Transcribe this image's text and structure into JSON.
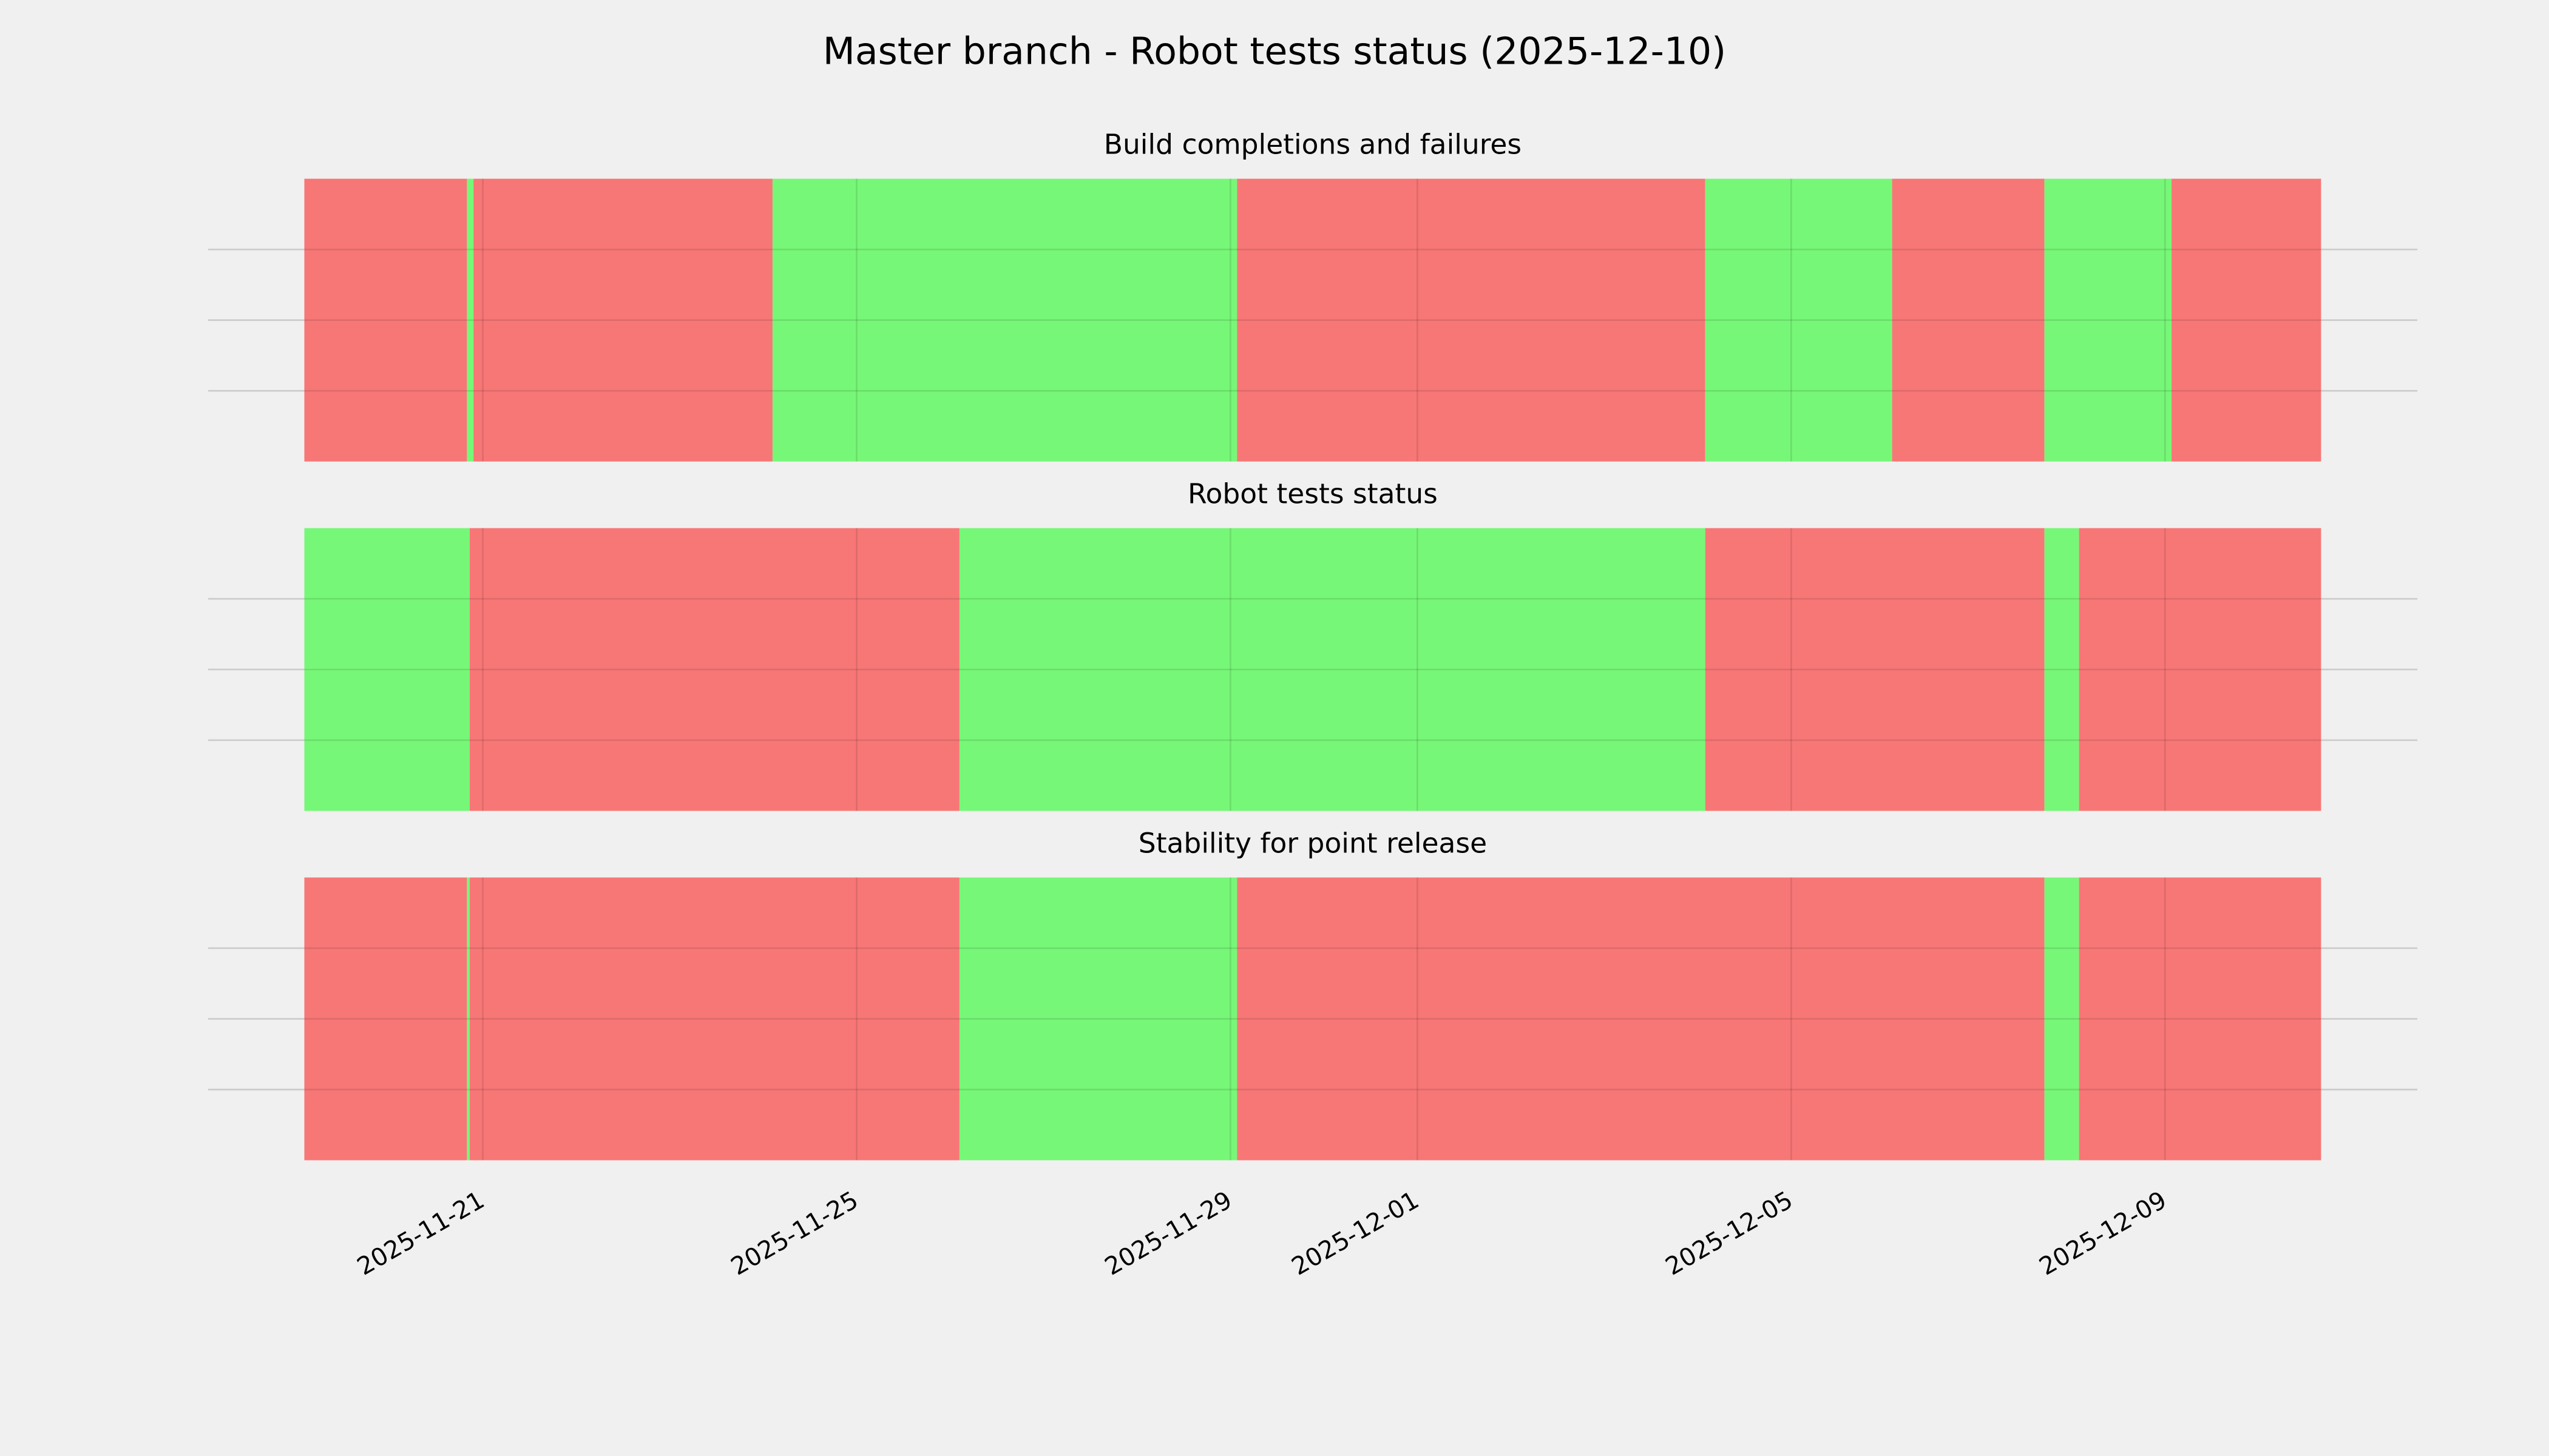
{
  "title": "Master branch - Robot tests status (2025-12-10)",
  "chart_data": [
    {
      "type": "timeline",
      "title": "Build completions and failures",
      "xlim": [
        20410.06,
        20433.7
      ],
      "ylim": [
        0,
        1
      ],
      "yticks": [
        0.25,
        0.5,
        0.75
      ],
      "grid": true,
      "spans": [
        {
          "start": 20411.09,
          "end": 20412.83,
          "color": "#f77776"
        },
        {
          "start": 20412.83,
          "end": 20412.9,
          "color": "#77f777"
        },
        {
          "start": 20412.9,
          "end": 20416.1,
          "color": "#f77776"
        },
        {
          "start": 20416.1,
          "end": 20421.07,
          "color": "#77f777"
        },
        {
          "start": 20421.07,
          "end": 20426.08,
          "color": "#f77776"
        },
        {
          "start": 20426.08,
          "end": 20428.08,
          "color": "#77f777"
        },
        {
          "start": 20428.08,
          "end": 20429.71,
          "color": "#f77776"
        },
        {
          "start": 20429.71,
          "end": 20431.07,
          "color": "#77f777"
        },
        {
          "start": 20431.07,
          "end": 20432.67,
          "color": "#f77776"
        }
      ]
    },
    {
      "type": "timeline",
      "title": "Robot tests status",
      "xlim": [
        20410.06,
        20433.7
      ],
      "ylim": [
        0,
        1
      ],
      "yticks": [
        0.25,
        0.5,
        0.75
      ],
      "grid": true,
      "spans": [
        {
          "start": 20411.09,
          "end": 20412.86,
          "color": "#77f777"
        },
        {
          "start": 20412.86,
          "end": 20418.1,
          "color": "#f77776"
        },
        {
          "start": 20418.1,
          "end": 20426.08,
          "color": "#77f777"
        },
        {
          "start": 20426.08,
          "end": 20429.71,
          "color": "#f77776"
        },
        {
          "start": 20429.71,
          "end": 20430.08,
          "color": "#77f777"
        },
        {
          "start": 20430.08,
          "end": 20432.67,
          "color": "#f77776"
        }
      ]
    },
    {
      "type": "timeline",
      "title": "Stability for point release",
      "xlim": [
        20410.06,
        20433.7
      ],
      "ylim": [
        0,
        1
      ],
      "yticks": [
        0.25,
        0.5,
        0.75
      ],
      "grid": true,
      "xticks": [
        {
          "value": 20413,
          "label": "2025-11-21"
        },
        {
          "value": 20417,
          "label": "2025-11-25"
        },
        {
          "value": 20421,
          "label": "2025-11-29"
        },
        {
          "value": 20423,
          "label": "2025-12-01"
        },
        {
          "value": 20427,
          "label": "2025-12-05"
        },
        {
          "value": 20431,
          "label": "2025-12-09"
        }
      ],
      "spans": [
        {
          "start": 20411.09,
          "end": 20412.83,
          "color": "#f77776"
        },
        {
          "start": 20412.83,
          "end": 20412.86,
          "color": "#77f777"
        },
        {
          "start": 20412.86,
          "end": 20418.1,
          "color": "#f77776"
        },
        {
          "start": 20418.1,
          "end": 20421.07,
          "color": "#77f777"
        },
        {
          "start": 20421.07,
          "end": 20429.71,
          "color": "#f77776"
        },
        {
          "start": 20429.71,
          "end": 20430.08,
          "color": "#77f777"
        },
        {
          "start": 20430.08,
          "end": 20432.67,
          "color": "#f77776"
        }
      ]
    }
  ]
}
